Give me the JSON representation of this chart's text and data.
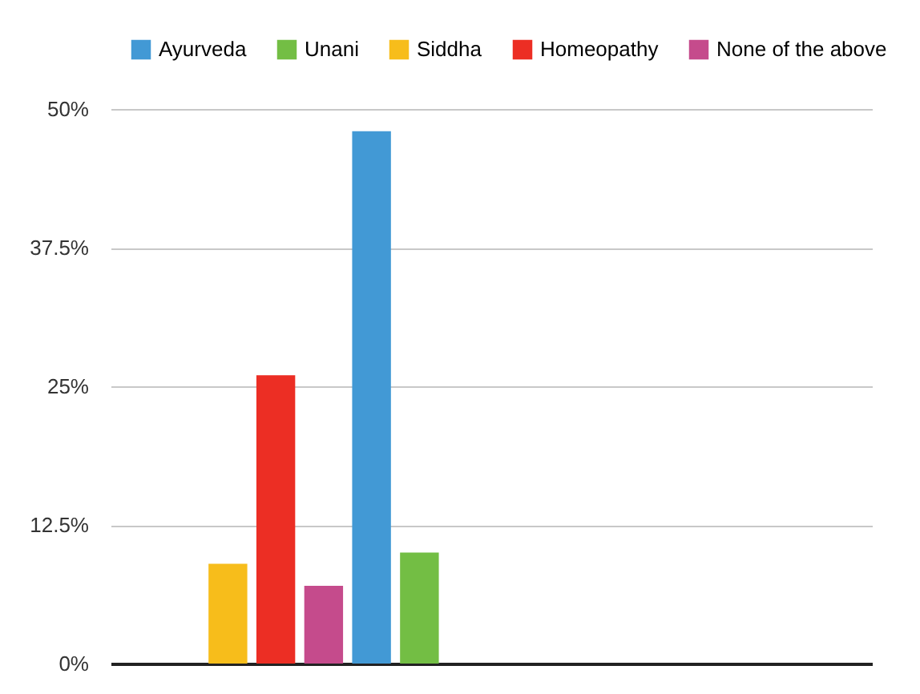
{
  "chart_data": {
    "type": "bar",
    "categories": [
      null,
      null,
      null,
      null,
      null,
      null,
      null,
      null,
      null,
      null,
      null,
      null,
      null,
      null,
      null,
      null
    ],
    "series": [
      {
        "name": "Ayurveda",
        "color": "#4299d5",
        "values": [
          null,
          null,
          null,
          null,
          null,
          48,
          null,
          null,
          null,
          null,
          null,
          null,
          null,
          null,
          null,
          null
        ]
      },
      {
        "name": "Unani",
        "color": "#73be44",
        "values": [
          null,
          null,
          null,
          null,
          null,
          null,
          10,
          null,
          null,
          null,
          null,
          null,
          null,
          null,
          null,
          null
        ]
      },
      {
        "name": "Siddha",
        "color": "#f7bd1b",
        "values": [
          null,
          null,
          9,
          null,
          null,
          null,
          null,
          null,
          null,
          null,
          null,
          null,
          null,
          null,
          null,
          null
        ]
      },
      {
        "name": "Homeopathy",
        "color": "#ec2e24",
        "values": [
          null,
          null,
          null,
          26,
          null,
          null,
          null,
          null,
          null,
          null,
          null,
          null,
          null,
          null,
          null,
          null
        ]
      },
      {
        "name": "None of the above",
        "color": "#c54b8c",
        "values": [
          null,
          null,
          null,
          null,
          7,
          null,
          null,
          null,
          null,
          null,
          null,
          null,
          null,
          null,
          null,
          null
        ]
      }
    ],
    "ylim": [
      0,
      50
    ],
    "yticks": [
      {
        "value": 0,
        "label": "0%"
      },
      {
        "value": 12.5,
        "label": "12.5%"
      },
      {
        "value": 25,
        "label": "25%"
      },
      {
        "value": 37.5,
        "label": "37.5%"
      },
      {
        "value": 50,
        "label": "50%"
      }
    ],
    "grid": "y",
    "legend": "top",
    "tick_labels": "y"
  }
}
